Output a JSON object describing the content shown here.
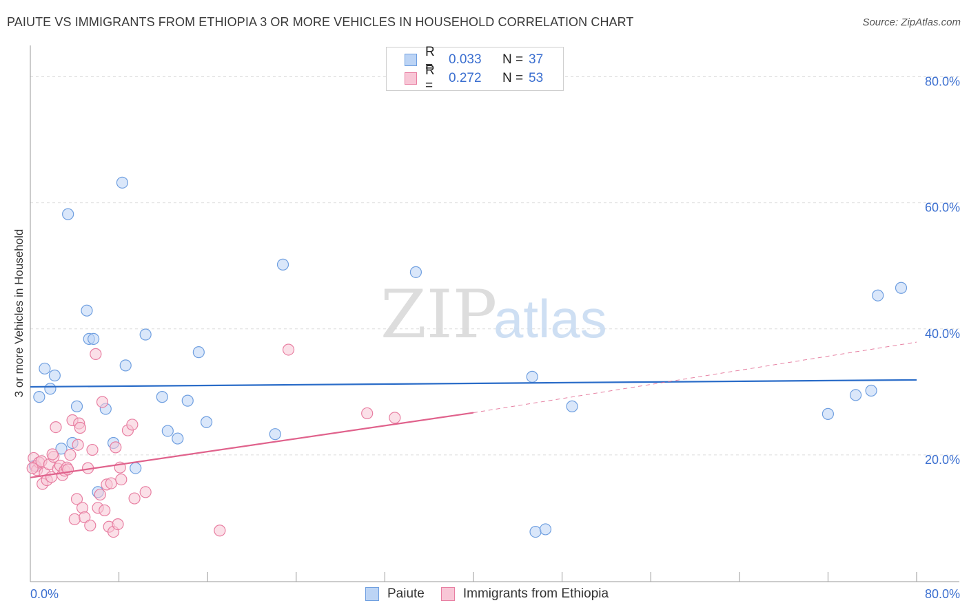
{
  "header": {
    "title": "PAIUTE VS IMMIGRANTS FROM ETHIOPIA 3 OR MORE VEHICLES IN HOUSEHOLD CORRELATION CHART",
    "source": "Source: ZipAtlas.com"
  },
  "watermark": {
    "zip": "ZIP",
    "atlas": "atlas"
  },
  "legend": {
    "rows": [
      {
        "r_label": "R =",
        "r_value": "0.033",
        "n_label": "N =",
        "n_value": "37",
        "color": "#6f9fe0",
        "fill": "#bcd4f5"
      },
      {
        "r_label": "R =",
        "r_value": "0.272",
        "n_label": "N =",
        "n_value": "53",
        "color": "#e87fa2",
        "fill": "#f8c6d6"
      }
    ]
  },
  "bottom_legend": {
    "series1": "Paiute",
    "series2": "Immigrants from Ethiopia"
  },
  "chart_data": {
    "type": "scatter",
    "xlabel": "",
    "ylabel": "3 or more Vehicles in Household",
    "xlim": [
      0,
      80
    ],
    "ylim": [
      0,
      80
    ],
    "x_tick_labels": [
      "0.0%",
      "80.0%"
    ],
    "y_tick_labels": [
      "20.0%",
      "40.0%",
      "60.0%",
      "80.0%"
    ],
    "y_ticks": [
      20,
      40,
      60,
      80
    ],
    "grid": true,
    "series": [
      {
        "name": "Paiute",
        "color": "#6f9fe0",
        "fill": "#bcd4f5",
        "trend": {
          "x0": 0,
          "y0": 30.8,
          "x1": 80,
          "y1": 31.9,
          "dashed_to": null
        },
        "points": [
          [
            0.8,
            29.2
          ],
          [
            1.3,
            33.7
          ],
          [
            1.8,
            30.5
          ],
          [
            2.2,
            32.6
          ],
          [
            2.8,
            21.0
          ],
          [
            3.4,
            58.2
          ],
          [
            3.8,
            21.9
          ],
          [
            4.2,
            27.7
          ],
          [
            5.1,
            42.9
          ],
          [
            5.3,
            38.4
          ],
          [
            5.7,
            38.4
          ],
          [
            6.1,
            14.1
          ],
          [
            6.8,
            27.3
          ],
          [
            7.5,
            21.9
          ],
          [
            8.3,
            63.2
          ],
          [
            8.6,
            34.2
          ],
          [
            9.5,
            17.9
          ],
          [
            10.4,
            39.1
          ],
          [
            11.9,
            29.2
          ],
          [
            12.4,
            23.8
          ],
          [
            13.3,
            22.6
          ],
          [
            14.2,
            28.6
          ],
          [
            15.2,
            36.3
          ],
          [
            15.9,
            25.2
          ],
          [
            22.1,
            23.3
          ],
          [
            22.8,
            50.2
          ],
          [
            34.8,
            49.0
          ],
          [
            45.3,
            32.4
          ],
          [
            45.6,
            7.8
          ],
          [
            46.5,
            8.2
          ],
          [
            48.9,
            27.7
          ],
          [
            72.0,
            26.5
          ],
          [
            74.5,
            29.5
          ],
          [
            75.9,
            30.2
          ],
          [
            76.5,
            45.3
          ],
          [
            78.6,
            46.5
          ],
          [
            0.4,
            18.3
          ]
        ]
      },
      {
        "name": "Immigrants from Ethiopia",
        "color": "#e87fa2",
        "fill": "#f8c6d6",
        "trend": {
          "x0": 0,
          "y0": 16.4,
          "x1": 40,
          "y1": 26.7,
          "dashed_to": [
            80,
            37.9
          ]
        },
        "points": [
          [
            0.3,
            19.5
          ],
          [
            0.5,
            18.2
          ],
          [
            0.6,
            17.6
          ],
          [
            0.8,
            18.8
          ],
          [
            1.0,
            19.0
          ],
          [
            1.1,
            15.4
          ],
          [
            1.3,
            17.1
          ],
          [
            1.5,
            16.0
          ],
          [
            1.7,
            18.5
          ],
          [
            1.9,
            16.5
          ],
          [
            2.1,
            19.7
          ],
          [
            2.3,
            24.4
          ],
          [
            2.5,
            17.8
          ],
          [
            2.7,
            18.3
          ],
          [
            2.9,
            16.8
          ],
          [
            3.1,
            17.5
          ],
          [
            3.3,
            18.0
          ],
          [
            3.4,
            17.7
          ],
          [
            3.6,
            20.0
          ],
          [
            3.8,
            25.5
          ],
          [
            4.0,
            9.8
          ],
          [
            4.2,
            13.0
          ],
          [
            4.3,
            21.6
          ],
          [
            4.4,
            25.0
          ],
          [
            4.5,
            24.3
          ],
          [
            4.7,
            11.6
          ],
          [
            4.9,
            10.1
          ],
          [
            5.2,
            17.9
          ],
          [
            5.4,
            8.8
          ],
          [
            5.6,
            20.8
          ],
          [
            5.9,
            36.0
          ],
          [
            6.1,
            11.6
          ],
          [
            6.3,
            13.7
          ],
          [
            6.5,
            28.4
          ],
          [
            6.7,
            11.2
          ],
          [
            6.9,
            15.3
          ],
          [
            7.1,
            8.6
          ],
          [
            7.3,
            15.5
          ],
          [
            7.5,
            7.8
          ],
          [
            7.7,
            21.2
          ],
          [
            7.9,
            9.0
          ],
          [
            8.1,
            18.0
          ],
          [
            8.2,
            16.1
          ],
          [
            8.8,
            23.9
          ],
          [
            9.2,
            24.8
          ],
          [
            9.4,
            13.1
          ],
          [
            10.4,
            14.1
          ],
          [
            17.1,
            8.0
          ],
          [
            23.3,
            36.7
          ],
          [
            30.4,
            26.6
          ],
          [
            32.9,
            25.9
          ],
          [
            0.2,
            17.9
          ],
          [
            2.0,
            20.1
          ]
        ]
      }
    ]
  }
}
